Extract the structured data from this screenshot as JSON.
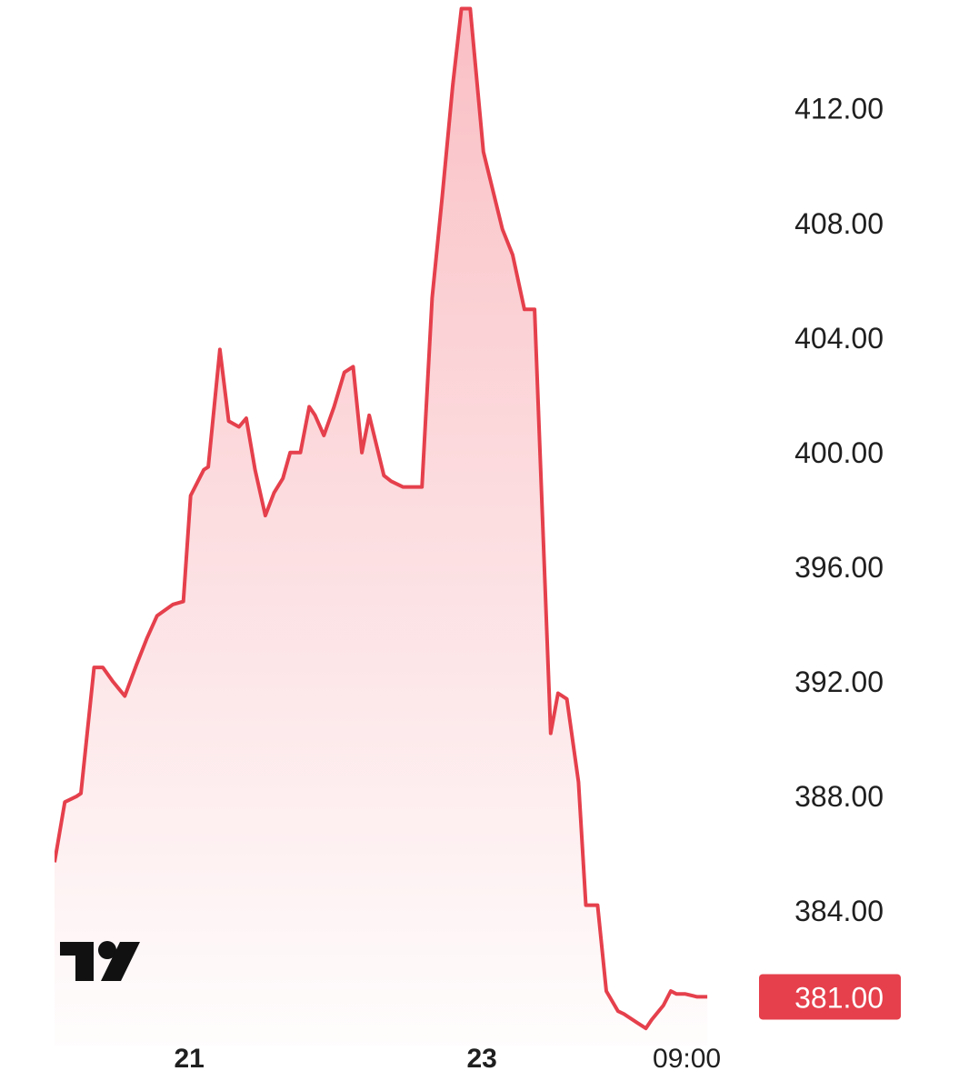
{
  "chart_data": {
    "type": "area",
    "x_ticks": [
      {
        "label": "21",
        "x": 5,
        "bold": true
      },
      {
        "label": "23",
        "x": 25,
        "bold": true
      },
      {
        "label": "09:00",
        "x": 39,
        "bold": false
      }
    ],
    "y_ticks": [
      "412.00",
      "408.00",
      "404.00",
      "400.00",
      "396.00",
      "392.00",
      "388.00",
      "384.00"
    ],
    "ylim": [
      379.3,
      415.8
    ],
    "xlim": [
      -4.2,
      43
    ],
    "last_value_label": "381.00",
    "series": [
      {
        "x": [
          -4.2,
          -3.5,
          -2.7,
          -2.4,
          -1.5,
          -0.9,
          -0.2,
          0.6,
          1.4,
          2.1,
          2.8,
          3.9,
          4.6,
          5.1,
          6.0,
          6.3,
          7.1,
          7.7,
          8.4,
          8.9,
          9.5,
          10.2,
          10.8,
          11.4,
          11.9,
          12.6,
          13.2,
          13.6,
          14.2,
          14.9,
          15.6,
          16.2,
          16.8,
          17.3,
          18.3,
          18.8,
          19.6,
          20.1,
          20.9,
          21.6,
          22.3,
          23.0,
          23.6,
          24.2,
          25.1,
          26.4,
          27.1,
          27.9,
          28.6,
          29.7,
          30.2,
          30.8,
          31.6,
          32.1,
          32.9,
          33.5,
          34.3,
          34.7,
          35.6,
          36.2,
          36.6,
          37.4,
          37.9,
          38.3,
          38.9,
          39.7,
          40.4
        ],
        "values": [
          385.7,
          387.8,
          388.0,
          388.1,
          392.5,
          392.5,
          392.0,
          391.5,
          392.6,
          393.5,
          394.3,
          394.7,
          394.8,
          398.5,
          399.4,
          399.5,
          403.6,
          401.1,
          400.9,
          401.2,
          399.4,
          397.8,
          398.6,
          399.1,
          400.0,
          400.0,
          401.6,
          401.3,
          400.6,
          401.6,
          402.8,
          403.0,
          400.0,
          401.3,
          399.2,
          399.0,
          398.8,
          398.8,
          398.8,
          405.4,
          409.0,
          412.8,
          415.5,
          415.5,
          410.5,
          407.8,
          406.9,
          405.0,
          405.0,
          390.2,
          391.6,
          391.4,
          388.5,
          384.2,
          384.2,
          381.2,
          380.5,
          380.4,
          380.1,
          379.9,
          380.2,
          380.7,
          381.2,
          381.1,
          381.1,
          381.0,
          381.0
        ]
      }
    ],
    "line_color": "#e5404c",
    "fill_color": "#f58b94",
    "label_bg_color": "#e5404c",
    "logo": "tradingview-logo"
  }
}
